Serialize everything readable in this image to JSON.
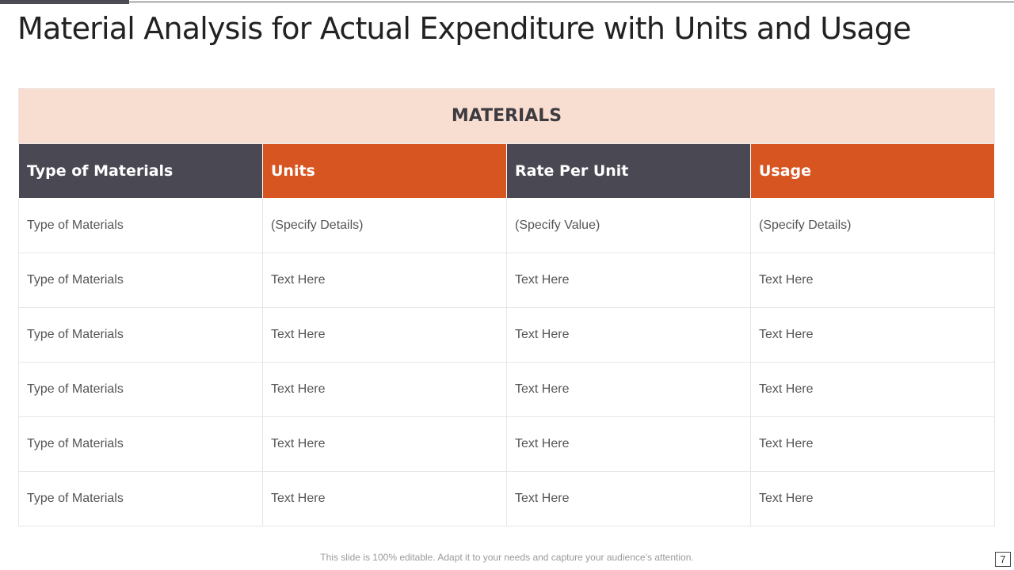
{
  "slide": {
    "title": "Material Analysis for Actual Expenditure with Units and Usage",
    "footer_note": "This slide is 100% editable. Adapt it to your needs and capture your audience’s attention.",
    "page_number": "7"
  },
  "table": {
    "caption": "MATERIALS",
    "headers": [
      "Type of Materials",
      "Units",
      "Rate Per Unit",
      "Usage"
    ],
    "rows": [
      [
        "Type of Materials",
        "(Specify Details)",
        "(Specify Value)",
        "(Specify Details)"
      ],
      [
        "Type of Materials",
        "Text Here",
        "Text Here",
        "Text Here"
      ],
      [
        "Type of Materials",
        "Text Here",
        "Text Here",
        "Text Here"
      ],
      [
        "Type of Materials",
        "Text Here",
        "Text Here",
        "Text Here"
      ],
      [
        "Type of Materials",
        "Text Here",
        "Text Here",
        "Text Here"
      ],
      [
        "Type of Materials",
        "Text Here",
        "Text Here",
        "Text Here"
      ]
    ]
  },
  "colors": {
    "dark_header": "#4a4853",
    "orange_header": "#d75521",
    "caption_background": "#f8ddd1"
  }
}
